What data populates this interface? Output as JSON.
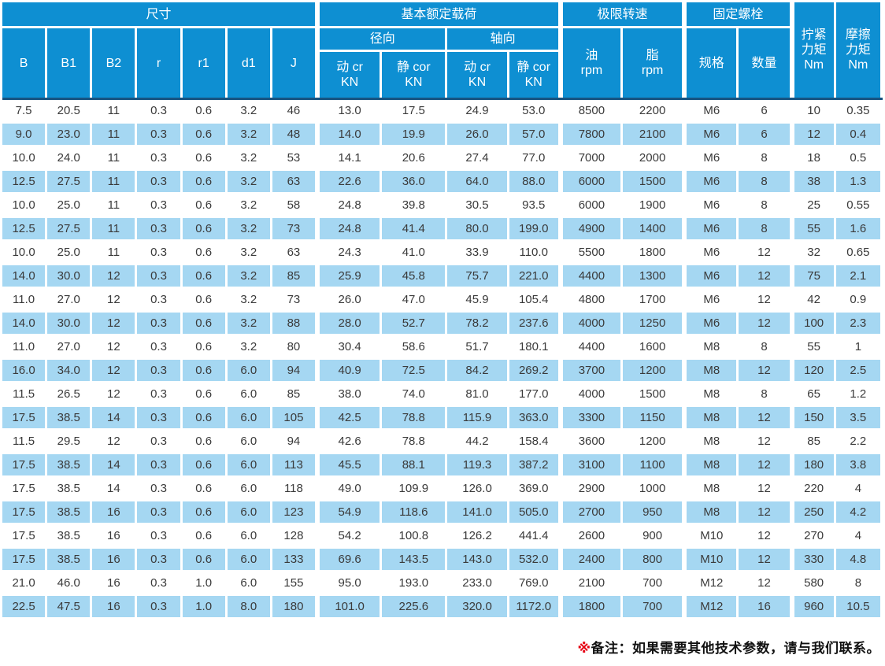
{
  "colors": {
    "header_blue": "#0e8fd2",
    "row_alt_blue": "#a5d7f2",
    "header_underline_navy": "#185481",
    "note_red": "#e60012",
    "data_text": "#3a3a3a"
  },
  "table": {
    "header": {
      "group_dimensions": "尺寸",
      "group_load": "基本额定载荷",
      "group_speed": "极限转速",
      "group_bolt": "固定螺栓",
      "dim_cols": [
        "B",
        "B1",
        "B2",
        "r",
        "r1",
        "d1",
        "J"
      ],
      "radial": "径向",
      "axial": "轴向",
      "load_cols": [
        [
          "动 cr",
          "KN"
        ],
        [
          "静 cor",
          "KN"
        ],
        [
          "动 cr",
          "KN"
        ],
        [
          "静 cor",
          "KN"
        ]
      ],
      "oil_lines": [
        "油",
        "rpm"
      ],
      "grease_lines": [
        "脂",
        "rpm"
      ],
      "bolt_spec": "规格",
      "bolt_qty": "数量",
      "tighten_lines": [
        "拧紧",
        "力矩",
        "Nm"
      ],
      "friction_lines": [
        "摩擦",
        "力矩",
        "Nm"
      ]
    },
    "rows": [
      [
        "7.5",
        "20.5",
        "11",
        "0.3",
        "0.6",
        "3.2",
        "46",
        "13.0",
        "17.5",
        "24.9",
        "53.0",
        "8500",
        "2200",
        "M6",
        "6",
        "10",
        "0.35"
      ],
      [
        "9.0",
        "23.0",
        "11",
        "0.3",
        "0.6",
        "3.2",
        "48",
        "14.0",
        "19.9",
        "26.0",
        "57.0",
        "7800",
        "2100",
        "M6",
        "6",
        "12",
        "0.4"
      ],
      [
        "10.0",
        "24.0",
        "11",
        "0.3",
        "0.6",
        "3.2",
        "53",
        "14.1",
        "20.6",
        "27.4",
        "77.0",
        "7000",
        "2000",
        "M6",
        "8",
        "18",
        "0.5"
      ],
      [
        "12.5",
        "27.5",
        "11",
        "0.3",
        "0.6",
        "3.2",
        "63",
        "22.6",
        "36.0",
        "64.0",
        "88.0",
        "6000",
        "1500",
        "M6",
        "8",
        "38",
        "1.3"
      ],
      [
        "10.0",
        "25.0",
        "11",
        "0.3",
        "0.6",
        "3.2",
        "58",
        "24.8",
        "39.8",
        "30.5",
        "93.5",
        "6000",
        "1900",
        "M6",
        "8",
        "25",
        "0.55"
      ],
      [
        "12.5",
        "27.5",
        "11",
        "0.3",
        "0.6",
        "3.2",
        "73",
        "24.8",
        "41.4",
        "80.0",
        "199.0",
        "4900",
        "1400",
        "M6",
        "8",
        "55",
        "1.6"
      ],
      [
        "10.0",
        "25.0",
        "11",
        "0.3",
        "0.6",
        "3.2",
        "63",
        "24.3",
        "41.0",
        "33.9",
        "110.0",
        "5500",
        "1800",
        "M6",
        "12",
        "32",
        "0.65"
      ],
      [
        "14.0",
        "30.0",
        "12",
        "0.3",
        "0.6",
        "3.2",
        "85",
        "25.9",
        "45.8",
        "75.7",
        "221.0",
        "4400",
        "1300",
        "M6",
        "12",
        "75",
        "2.1"
      ],
      [
        "11.0",
        "27.0",
        "12",
        "0.3",
        "0.6",
        "3.2",
        "73",
        "26.0",
        "47.0",
        "45.9",
        "105.4",
        "4800",
        "1700",
        "M6",
        "12",
        "42",
        "0.9"
      ],
      [
        "14.0",
        "30.0",
        "12",
        "0.3",
        "0.6",
        "3.2",
        "88",
        "28.0",
        "52.7",
        "78.2",
        "237.6",
        "4000",
        "1250",
        "M6",
        "12",
        "100",
        "2.3"
      ],
      [
        "11.0",
        "27.0",
        "12",
        "0.3",
        "0.6",
        "3.2",
        "80",
        "30.4",
        "58.6",
        "51.7",
        "180.1",
        "4400",
        "1600",
        "M8",
        "8",
        "55",
        "1"
      ],
      [
        "16.0",
        "34.0",
        "12",
        "0.3",
        "0.6",
        "6.0",
        "94",
        "40.9",
        "72.5",
        "84.2",
        "269.2",
        "3700",
        "1200",
        "M8",
        "12",
        "120",
        "2.5"
      ],
      [
        "11.5",
        "26.5",
        "12",
        "0.3",
        "0.6",
        "6.0",
        "85",
        "38.0",
        "74.0",
        "81.0",
        "177.0",
        "4000",
        "1500",
        "M8",
        "8",
        "65",
        "1.2"
      ],
      [
        "17.5",
        "38.5",
        "14",
        "0.3",
        "0.6",
        "6.0",
        "105",
        "42.5",
        "78.8",
        "115.9",
        "363.0",
        "3300",
        "1150",
        "M8",
        "12",
        "150",
        "3.5"
      ],
      [
        "11.5",
        "29.5",
        "12",
        "0.3",
        "0.6",
        "6.0",
        "94",
        "42.6",
        "78.8",
        "44.2",
        "158.4",
        "3600",
        "1200",
        "M8",
        "12",
        "85",
        "2.2"
      ],
      [
        "17.5",
        "38.5",
        "14",
        "0.3",
        "0.6",
        "6.0",
        "113",
        "45.5",
        "88.1",
        "119.3",
        "387.2",
        "3100",
        "1100",
        "M8",
        "12",
        "180",
        "3.8"
      ],
      [
        "17.5",
        "38.5",
        "14",
        "0.3",
        "0.6",
        "6.0",
        "118",
        "49.0",
        "109.9",
        "126.0",
        "369.0",
        "2900",
        "1000",
        "M8",
        "12",
        "220",
        "4"
      ],
      [
        "17.5",
        "38.5",
        "16",
        "0.3",
        "0.6",
        "6.0",
        "123",
        "54.9",
        "118.6",
        "141.0",
        "505.0",
        "2700",
        "950",
        "M8",
        "12",
        "250",
        "4.2"
      ],
      [
        "17.5",
        "38.5",
        "16",
        "0.3",
        "0.6",
        "6.0",
        "128",
        "54.2",
        "100.8",
        "126.2",
        "441.4",
        "2600",
        "900",
        "M10",
        "12",
        "270",
        "4"
      ],
      [
        "17.5",
        "38.5",
        "16",
        "0.3",
        "0.6",
        "6.0",
        "133",
        "69.6",
        "143.5",
        "143.0",
        "532.0",
        "2400",
        "800",
        "M10",
        "12",
        "330",
        "4.8"
      ],
      [
        "21.0",
        "46.0",
        "16",
        "0.3",
        "1.0",
        "6.0",
        "155",
        "95.0",
        "193.0",
        "233.0",
        "769.0",
        "2100",
        "700",
        "M12",
        "12",
        "580",
        "8"
      ],
      [
        "22.5",
        "47.5",
        "16",
        "0.3",
        "1.0",
        "8.0",
        "180",
        "101.0",
        "225.6",
        "320.0",
        "1172.0",
        "1800",
        "700",
        "M12",
        "16",
        "960",
        "10.5"
      ]
    ]
  },
  "note": {
    "marker": "※",
    "text": "备注：如果需要其他技术参数，请与我们联系。"
  }
}
